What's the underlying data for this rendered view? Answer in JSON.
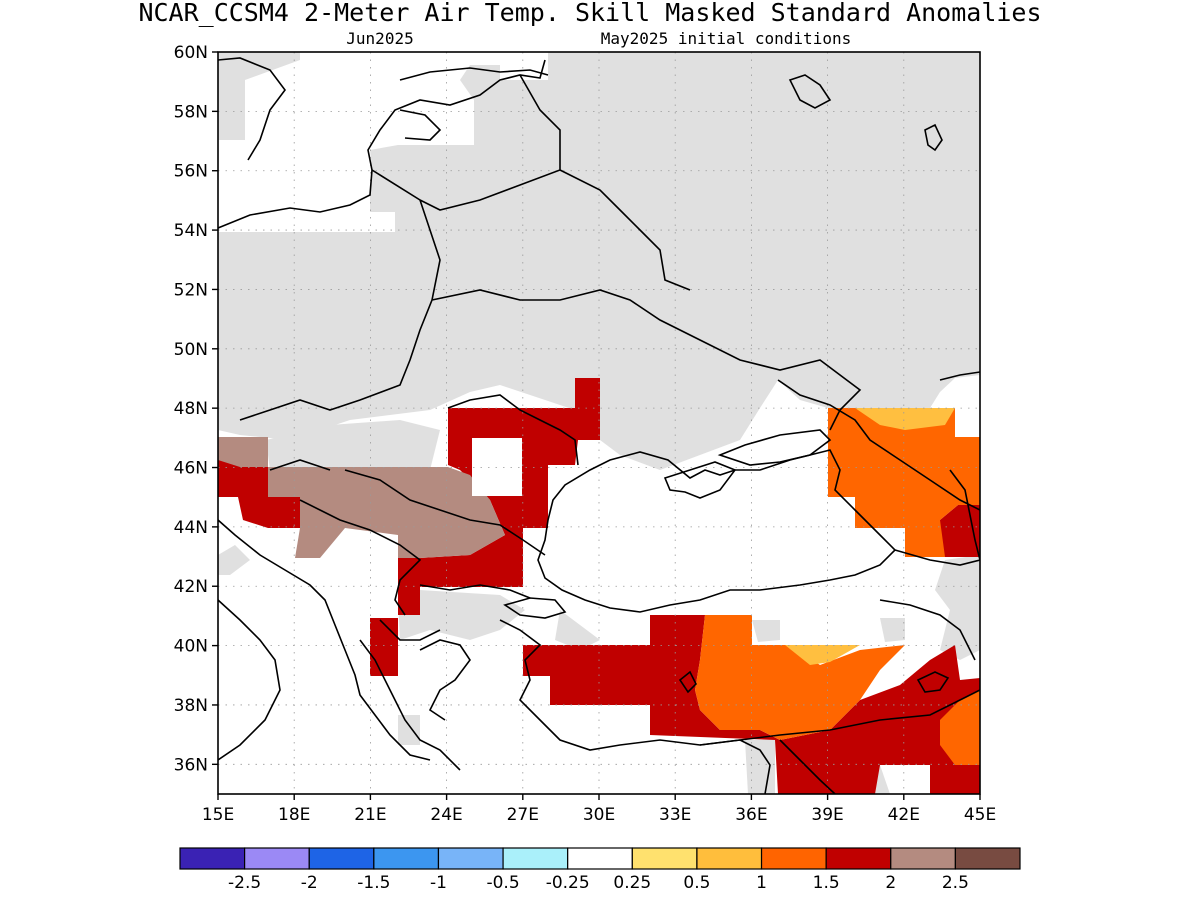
{
  "title": "NCAR_CCSM4 2-Meter Air Temp. Skill Masked Standard Anomalies",
  "subtitle_left": "Jun2025",
  "subtitle_right": "May2025 initial conditions",
  "map": {
    "lon_range": [
      15,
      45
    ],
    "lat_range": [
      35,
      60
    ],
    "x_ticks": [
      "15E",
      "18E",
      "21E",
      "24E",
      "27E",
      "30E",
      "33E",
      "36E",
      "39E",
      "42E",
      "45E"
    ],
    "y_ticks": [
      "60N",
      "58N",
      "56N",
      "54N",
      "52N",
      "50N",
      "48N",
      "46N",
      "44N",
      "42N",
      "40N",
      "38N",
      "36N"
    ],
    "grid": true,
    "colors": {
      "masked": "#e0e0e0",
      "anom_0_5_1": "#ffbf40",
      "anom_1_1_5": "#ff6600",
      "anom_1_5_2": "#c00000",
      "anom_2_2_5": "#b48b80",
      "anom_0_25_0_5": "#ffdc60"
    }
  },
  "colorbar": {
    "colors": [
      "#3a22b4",
      "#9b89f5",
      "#1e64e6",
      "#3c96f0",
      "#78b4f8",
      "#aaf0fa",
      "#ffffff",
      "#ffe16e",
      "#ffbe3c",
      "#ff6400",
      "#c00000",
      "#b48b80",
      "#784b41"
    ],
    "labels": [
      "-2.5",
      "-2",
      "-1.5",
      "-1",
      "-0.5",
      "-0.25",
      "0.25",
      "0.5",
      "1",
      "1.5",
      "2",
      "2.5"
    ]
  }
}
